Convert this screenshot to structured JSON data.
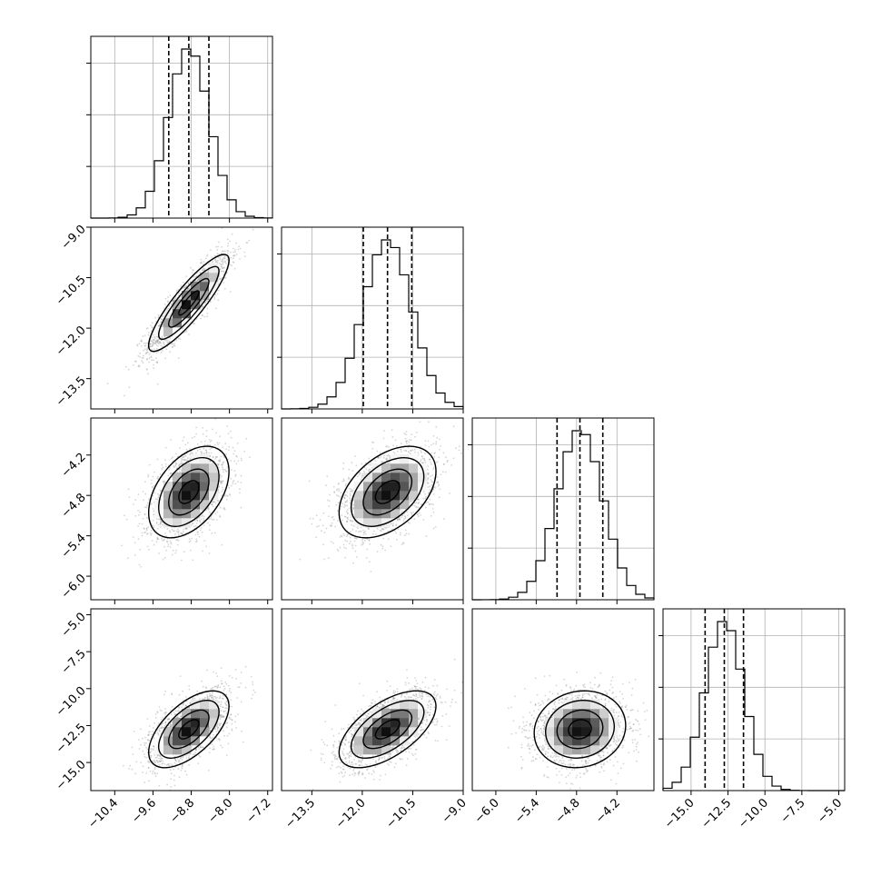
{
  "chart_data": {
    "type": "corner",
    "description_free": true,
    "grid": true,
    "colors": {
      "line": "#000000",
      "grid": "#b0b0b0",
      "points": "#8a8a8a"
    },
    "parameters": [
      {
        "mean": -8.85,
        "std": 0.42,
        "q16": -9.27,
        "q50": -8.85,
        "q84": -8.43,
        "lim": [
          -10.9,
          -7.1
        ],
        "ticks": [
          -10.4,
          -9.6,
          -8.8,
          -8.0,
          -7.2
        ],
        "tick_labels": [
          "−10.4",
          "−9.6",
          "−8.8",
          "−8.0",
          "−7.2"
        ]
      },
      {
        "mean": -11.25,
        "std": 0.72,
        "q16": -11.97,
        "q50": -11.25,
        "q84": -10.53,
        "lim": [
          -14.4,
          -9.0
        ],
        "ticks": [
          -13.5,
          -12.0,
          -10.5,
          -9.0
        ],
        "tick_labels": [
          "−13.5",
          "−12.0",
          "−10.5",
          "−9.0"
        ]
      },
      {
        "mean": -4.75,
        "std": 0.34,
        "q16": -5.09,
        "q50": -4.75,
        "q84": -4.41,
        "lim": [
          -6.35,
          -3.65
        ],
        "ticks": [
          -6.0,
          -5.4,
          -4.8,
          -4.2
        ],
        "tick_labels": [
          "−6.0",
          "−5.4",
          "−4.8",
          "−4.2"
        ]
      },
      {
        "mean": -12.75,
        "std": 1.3,
        "q16": -14.05,
        "q50": -12.75,
        "q84": -11.45,
        "lim": [
          -16.9,
          -4.6
        ],
        "ticks": [
          -15.0,
          -12.5,
          -10.0,
          -7.5,
          -5.0
        ],
        "tick_labels": [
          "−15.0",
          "−12.5",
          "−10.0",
          "−7.5",
          "−5.0"
        ]
      }
    ],
    "correlations": [
      [
        1.0,
        0.88,
        0.45,
        0.6
      ],
      [
        0.88,
        1.0,
        0.45,
        0.6
      ],
      [
        0.45,
        0.45,
        1.0,
        0.1
      ],
      [
        0.6,
        0.6,
        0.1,
        1.0
      ]
    ],
    "histogram_bins": 20,
    "contour_levels_sigma": [
      0.5,
      1.0,
      1.5,
      2.0
    ]
  }
}
